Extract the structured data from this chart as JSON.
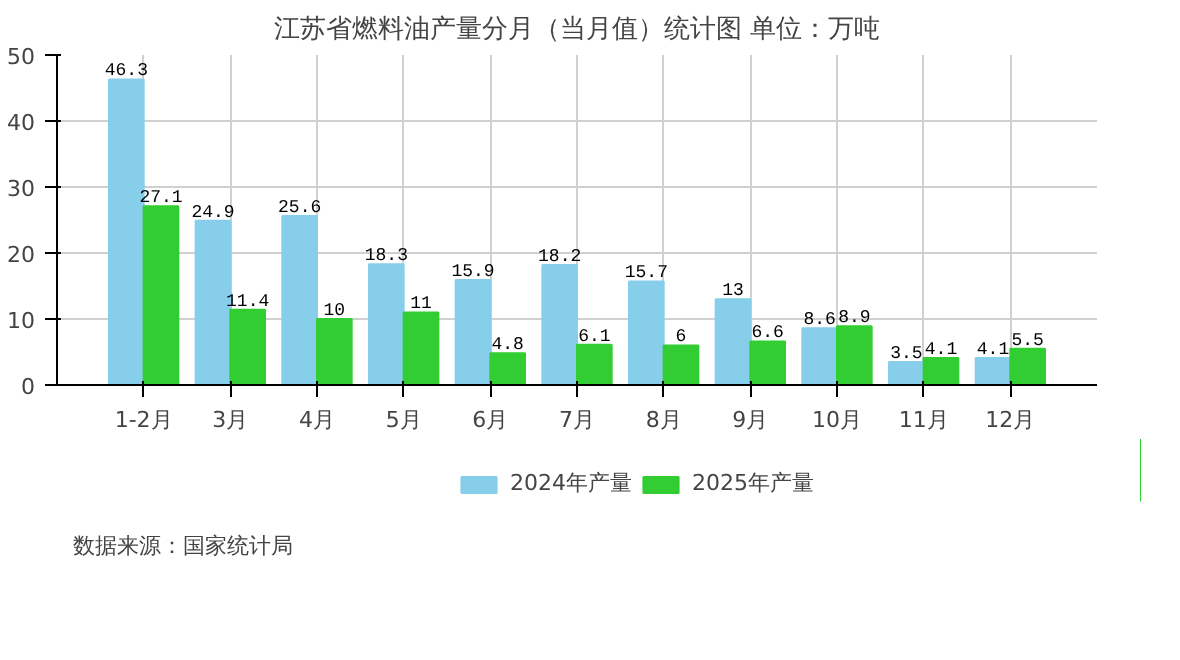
{
  "chart_data": {
    "type": "bar",
    "title": "江苏省燃料油产量分月（当月值）统计图 单位：万吨",
    "categories": [
      "1-2月",
      "3月",
      "4月",
      "5月",
      "6月",
      "7月",
      "8月",
      "9月",
      "10月",
      "11月",
      "12月"
    ],
    "series": [
      {
        "name": "2024年产量",
        "color": "#87ceeb",
        "values": [
          46.3,
          24.9,
          25.6,
          18.3,
          15.9,
          18.2,
          15.7,
          13,
          8.6,
          3.5,
          4.1
        ]
      },
      {
        "name": "2025年产量",
        "color": "#32cd32",
        "values": [
          27.1,
          11.4,
          10,
          11,
          4.8,
          6.1,
          6,
          6.6,
          8.9,
          4.1,
          5.5
        ]
      }
    ],
    "ylim": [
      0,
      50
    ],
    "yticks": [
      0,
      10,
      20,
      30,
      40,
      50
    ],
    "grid": true,
    "legend": "bottom",
    "data_labels": true,
    "annotations": [
      "数据来源：国家统计局"
    ]
  }
}
